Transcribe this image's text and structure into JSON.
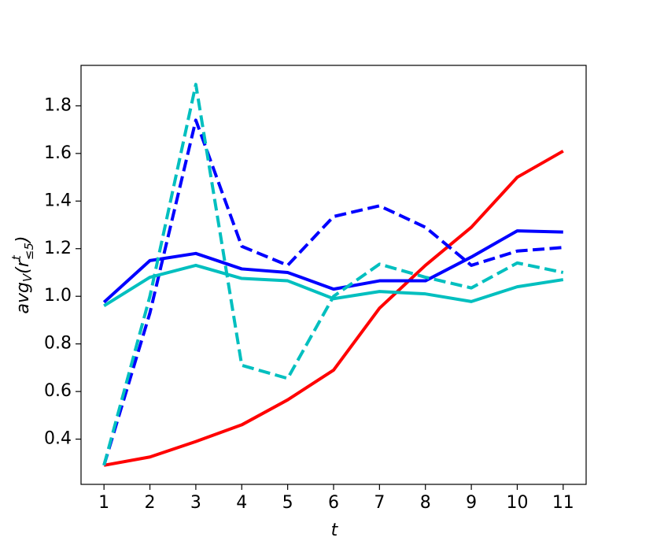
{
  "chart_data": {
    "type": "line",
    "xlabel": "t",
    "ylabel": {
      "base": "avg",
      "sub": "V",
      "open": "(r",
      "sup": "t",
      "sub2": "≤5",
      "close": ")"
    },
    "x": [
      1,
      2,
      3,
      4,
      5,
      6,
      7,
      8,
      9,
      10,
      11
    ],
    "series": [
      {
        "color": "#ff0000",
        "dashed": false,
        "values": [
          0.29,
          0.325,
          0.39,
          0.46,
          0.565,
          0.69,
          0.95,
          1.13,
          1.29,
          1.5,
          1.61
        ]
      },
      {
        "color": "#0000ff",
        "dashed": false,
        "values": [
          0.975,
          1.15,
          1.18,
          1.115,
          1.1,
          1.03,
          1.065,
          1.065,
          1.165,
          1.275,
          1.27
        ]
      },
      {
        "color": "#0000ff",
        "dashed": true,
        "values": [
          0.29,
          0.93,
          1.74,
          1.21,
          1.13,
          1.335,
          1.38,
          1.29,
          1.13,
          1.19,
          1.205
        ]
      },
      {
        "color": "#00bfbf",
        "dashed": false,
        "values": [
          0.96,
          1.08,
          1.13,
          1.075,
          1.065,
          0.99,
          1.02,
          1.01,
          0.978,
          1.04,
          1.07
        ]
      },
      {
        "color": "#00bfbf",
        "dashed": true,
        "values": [
          0.29,
          1.0,
          1.89,
          0.71,
          0.655,
          1.0,
          1.135,
          1.08,
          1.035,
          1.14,
          1.1
        ]
      }
    ],
    "xlim": [
      0.5,
      11.5
    ],
    "xticks": [
      1,
      2,
      3,
      4,
      5,
      6,
      7,
      8,
      9,
      10,
      11
    ],
    "ylim": [
      0.21,
      1.97
    ],
    "yticks": [
      {
        "value": 0.4,
        "label": "0.4"
      },
      {
        "value": 0.6,
        "label": "0.6"
      },
      {
        "value": 0.8,
        "label": "0.8"
      },
      {
        "value": 1.0,
        "label": "1.0"
      },
      {
        "value": 1.2,
        "label": "1.2"
      },
      {
        "value": 1.4,
        "label": "1.4"
      },
      {
        "value": 1.6,
        "label": "1.6"
      },
      {
        "value": 1.8,
        "label": "1.8"
      }
    ],
    "grid": false
  }
}
